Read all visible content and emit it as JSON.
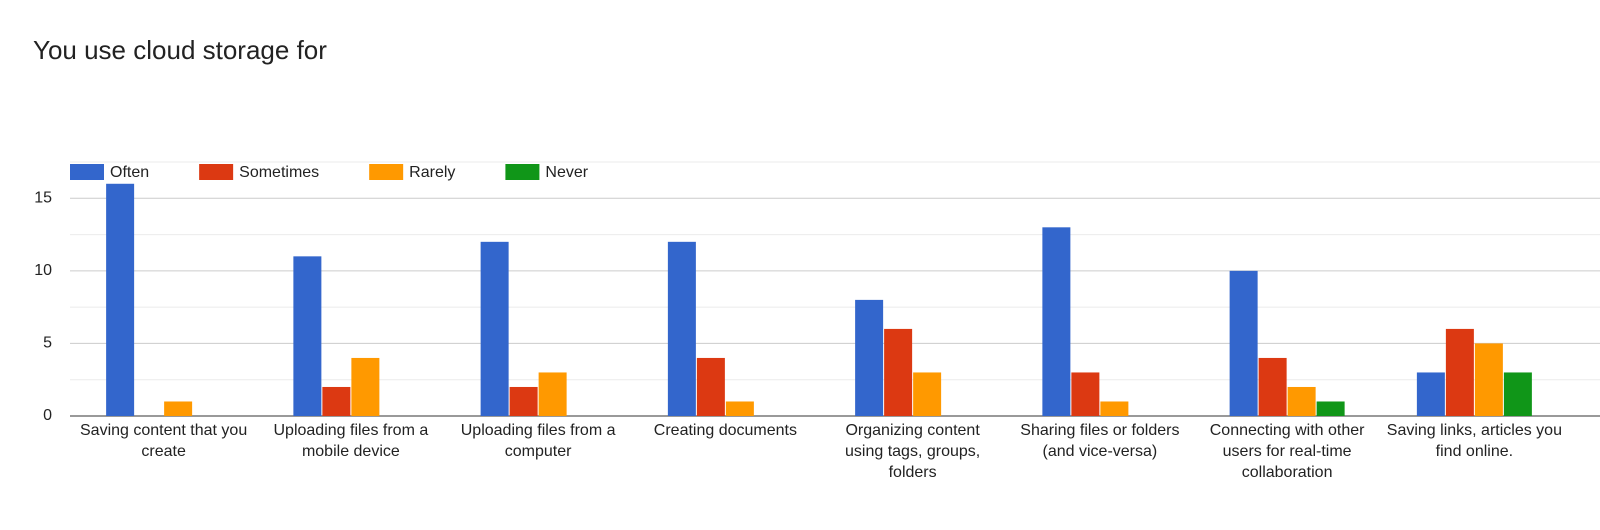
{
  "chart_data": {
    "type": "bar",
    "title": "You use cloud storage for",
    "categories": [
      "Saving content that you create",
      "Uploading files from a mobile device",
      "Uploading files from a computer",
      "Creating documents",
      "Organizing content using tags, groups, folders",
      "Sharing files or folders (and vice-versa)",
      "Connecting with other users for real-time collaboration",
      "Saving links, articles you find online."
    ],
    "series": [
      {
        "name": "Often",
        "color": "#3366cc",
        "values": [
          16,
          11,
          12,
          12,
          8,
          13,
          10,
          3
        ]
      },
      {
        "name": "Sometimes",
        "color": "#dc3912",
        "values": [
          0,
          2,
          2,
          4,
          6,
          3,
          4,
          6
        ]
      },
      {
        "name": "Rarely",
        "color": "#ff9900",
        "values": [
          1,
          4,
          3,
          1,
          3,
          1,
          2,
          5
        ]
      },
      {
        "name": "Never",
        "color": "#109618",
        "values": [
          0,
          0,
          0,
          0,
          0,
          0,
          1,
          3
        ]
      }
    ],
    "ylim": [
      0,
      17.5
    ],
    "yticks": [
      0,
      5,
      10,
      15
    ],
    "minor_yticks": [
      2.5,
      7.5,
      12.5,
      17.5
    ],
    "grid": true,
    "legend": "top"
  }
}
